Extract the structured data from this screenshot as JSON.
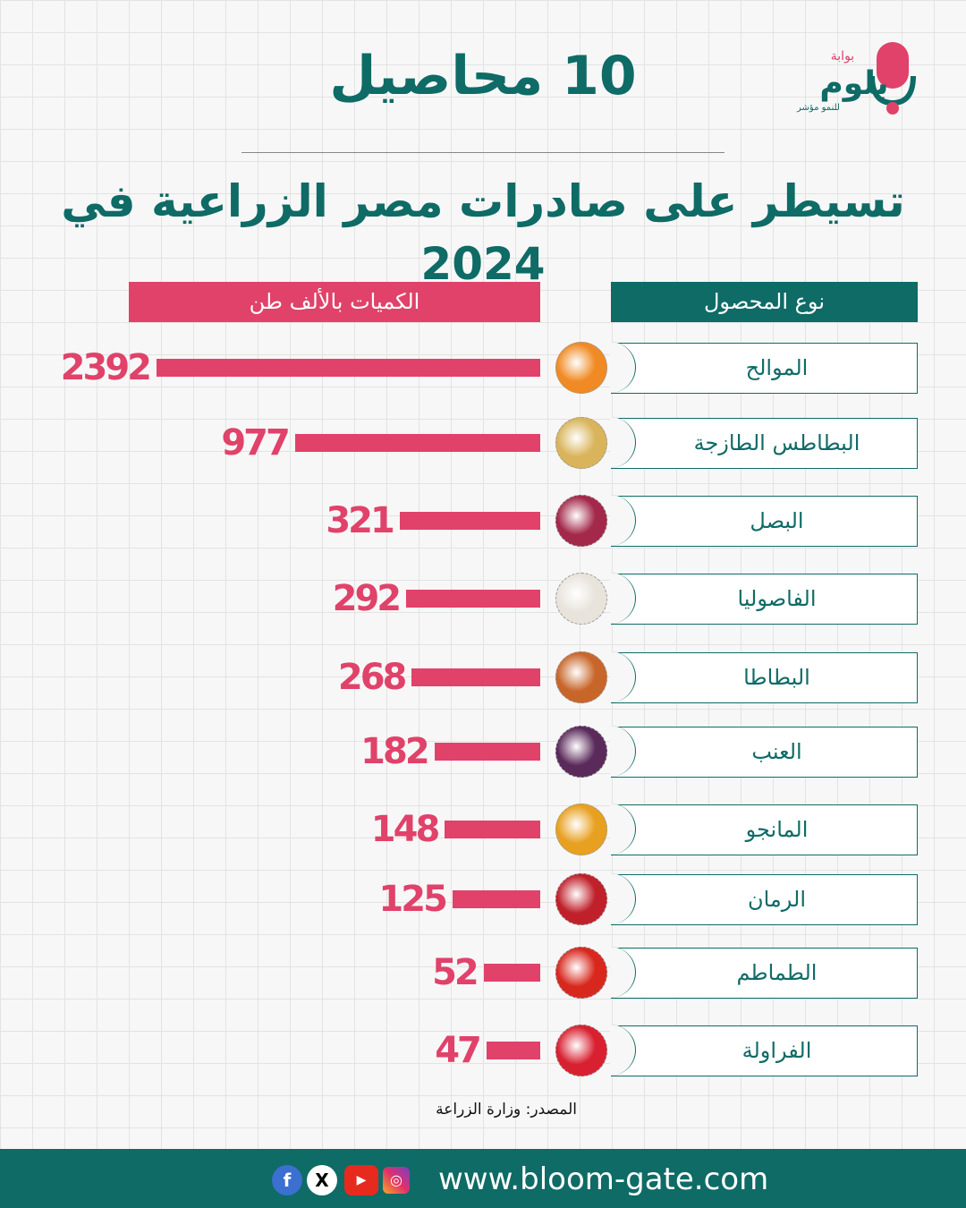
{
  "header": {
    "title_line1": "10 محاصيل",
    "title_line2": "تسيطر على صادرات مصر الزراعية في 2024"
  },
  "logo": {
    "text_main": "بلوم",
    "text_top": "بوابة",
    "text_tag": "للنمو مؤشر"
  },
  "colors": {
    "teal": "#0e6b66",
    "pink": "#e0426a"
  },
  "chart_data": {
    "type": "bar",
    "title": "10 محاصيل تسيطر على صادرات مصر الزراعية في 2024",
    "xlabel": "الكميات بالألف طن",
    "ylabel": "نوع المحصول",
    "categories": [
      "الموالح",
      "البطاطس الطازجة",
      "البصل",
      "الفاصوليا",
      "البطاطا",
      "العنب",
      "المانجو",
      "الرمان",
      "الطماطم",
      "الفراولة"
    ],
    "values": [
      2392,
      977,
      321,
      292,
      268,
      182,
      148,
      125,
      52,
      47
    ],
    "icons": [
      "citrus-icon",
      "potato-icon",
      "onion-icon",
      "beans-icon",
      "sweet-potato-icon",
      "grapes-icon",
      "mango-icon",
      "pomegranate-icon",
      "tomato-icon",
      "strawberry-icon"
    ],
    "icon_colors": [
      "#f08a24",
      "#d9b45a",
      "#a3284a",
      "#e8e4dc",
      "#c8662a",
      "#5a2a5a",
      "#e8a020",
      "#c0202a",
      "#d8281e",
      "#d82030"
    ]
  },
  "source": "المصدر: وزارة الزراعة",
  "footer": {
    "url": "www.bloom-gate.com",
    "social": [
      "facebook-icon",
      "x-icon",
      "youtube-icon",
      "instagram-icon"
    ]
  }
}
